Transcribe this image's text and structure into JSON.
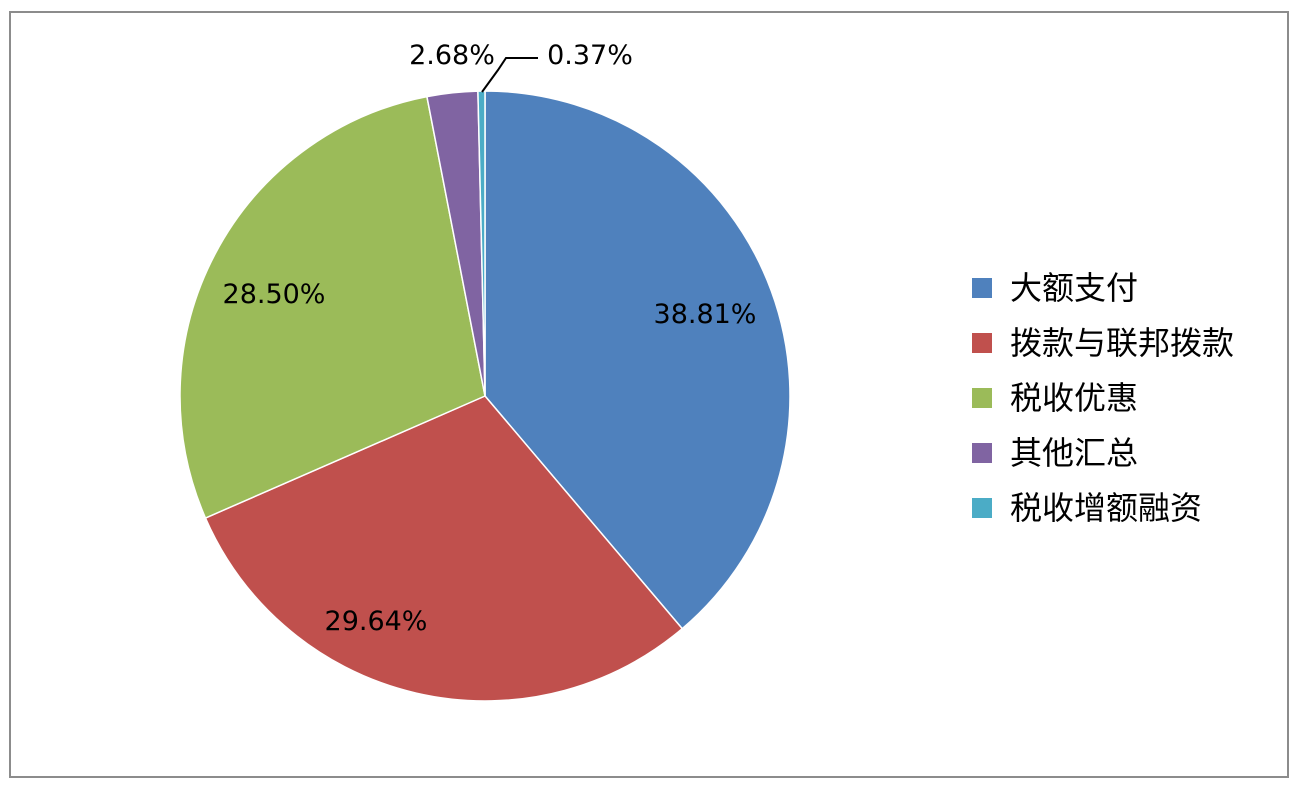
{
  "chart_data": {
    "type": "pie",
    "title": "",
    "series": [
      {
        "categories": [
          "大额支付",
          "拨款与联邦拨款",
          "税收优惠",
          "其他汇总",
          "税收增额融资"
        ],
        "values": [
          38.81,
          29.64,
          28.5,
          2.68,
          0.37
        ],
        "labels": [
          "38.81%",
          "29.64%",
          "28.50%",
          "2.68%",
          "0.37%"
        ],
        "colors": [
          "#4f81bd",
          "#c0504d",
          "#9bbb59",
          "#8064a2",
          "#4bacc6"
        ]
      }
    ],
    "legend": {
      "position": "right",
      "entries": [
        "大额支付",
        "拨款与联邦拨款",
        "税收优惠",
        "其他汇总",
        "税收增额融资"
      ]
    },
    "start_angle": "12 o'clock",
    "direction": "clockwise",
    "grid": false
  },
  "colors": {
    "frame_border": "#8c8c8c",
    "slice_separator": "#ffffff",
    "leader_line": "#000000"
  }
}
